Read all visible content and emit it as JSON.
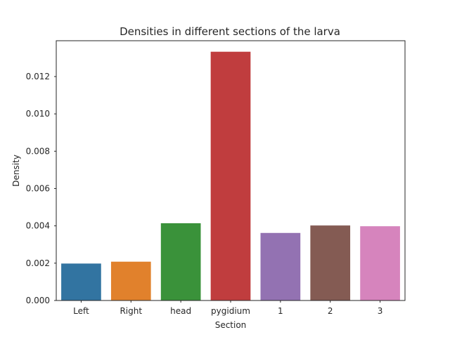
{
  "chart_data": {
    "type": "bar",
    "title": "Densities in different sections of the larva",
    "xlabel": "Section",
    "ylabel": "Density",
    "categories": [
      "Left",
      "Right",
      "head",
      "pygidium",
      "1",
      "2",
      "3"
    ],
    "values": [
      0.00198,
      0.00208,
      0.00414,
      0.01333,
      0.00362,
      0.00402,
      0.00398
    ],
    "colors": [
      "#3274a1",
      "#e1812c",
      "#3a923a",
      "#c03d3e",
      "#9372b2",
      "#845b53",
      "#d684bd"
    ],
    "ylim": [
      0,
      0.01392
    ],
    "yticks": [
      "0.000",
      "0.002",
      "0.004",
      "0.006",
      "0.008",
      "0.010",
      "0.012"
    ],
    "grid": false,
    "legend": "none"
  }
}
